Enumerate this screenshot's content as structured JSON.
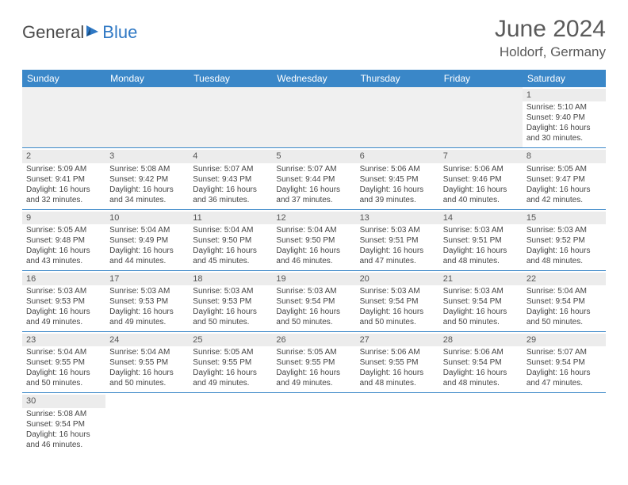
{
  "brand": {
    "part1": "General",
    "part2": "Blue"
  },
  "title": "June 2024",
  "location": "Holdorf, Germany",
  "colors": {
    "header_bg": "#3a87c8",
    "header_fg": "#ffffff",
    "rule": "#3a87c8",
    "blank_bg": "#f0f0f0",
    "text": "#444444",
    "title_color": "#5a5a5a"
  },
  "weekdays": [
    "Sunday",
    "Monday",
    "Tuesday",
    "Wednesday",
    "Thursday",
    "Friday",
    "Saturday"
  ],
  "weeks": [
    [
      null,
      null,
      null,
      null,
      null,
      null,
      {
        "n": "1",
        "sr": "Sunrise: 5:10 AM",
        "ss": "Sunset: 9:40 PM",
        "d1": "Daylight: 16 hours",
        "d2": "and 30 minutes."
      }
    ],
    [
      {
        "n": "2",
        "sr": "Sunrise: 5:09 AM",
        "ss": "Sunset: 9:41 PM",
        "d1": "Daylight: 16 hours",
        "d2": "and 32 minutes."
      },
      {
        "n": "3",
        "sr": "Sunrise: 5:08 AM",
        "ss": "Sunset: 9:42 PM",
        "d1": "Daylight: 16 hours",
        "d2": "and 34 minutes."
      },
      {
        "n": "4",
        "sr": "Sunrise: 5:07 AM",
        "ss": "Sunset: 9:43 PM",
        "d1": "Daylight: 16 hours",
        "d2": "and 36 minutes."
      },
      {
        "n": "5",
        "sr": "Sunrise: 5:07 AM",
        "ss": "Sunset: 9:44 PM",
        "d1": "Daylight: 16 hours",
        "d2": "and 37 minutes."
      },
      {
        "n": "6",
        "sr": "Sunrise: 5:06 AM",
        "ss": "Sunset: 9:45 PM",
        "d1": "Daylight: 16 hours",
        "d2": "and 39 minutes."
      },
      {
        "n": "7",
        "sr": "Sunrise: 5:06 AM",
        "ss": "Sunset: 9:46 PM",
        "d1": "Daylight: 16 hours",
        "d2": "and 40 minutes."
      },
      {
        "n": "8",
        "sr": "Sunrise: 5:05 AM",
        "ss": "Sunset: 9:47 PM",
        "d1": "Daylight: 16 hours",
        "d2": "and 42 minutes."
      }
    ],
    [
      {
        "n": "9",
        "sr": "Sunrise: 5:05 AM",
        "ss": "Sunset: 9:48 PM",
        "d1": "Daylight: 16 hours",
        "d2": "and 43 minutes."
      },
      {
        "n": "10",
        "sr": "Sunrise: 5:04 AM",
        "ss": "Sunset: 9:49 PM",
        "d1": "Daylight: 16 hours",
        "d2": "and 44 minutes."
      },
      {
        "n": "11",
        "sr": "Sunrise: 5:04 AM",
        "ss": "Sunset: 9:50 PM",
        "d1": "Daylight: 16 hours",
        "d2": "and 45 minutes."
      },
      {
        "n": "12",
        "sr": "Sunrise: 5:04 AM",
        "ss": "Sunset: 9:50 PM",
        "d1": "Daylight: 16 hours",
        "d2": "and 46 minutes."
      },
      {
        "n": "13",
        "sr": "Sunrise: 5:03 AM",
        "ss": "Sunset: 9:51 PM",
        "d1": "Daylight: 16 hours",
        "d2": "and 47 minutes."
      },
      {
        "n": "14",
        "sr": "Sunrise: 5:03 AM",
        "ss": "Sunset: 9:51 PM",
        "d1": "Daylight: 16 hours",
        "d2": "and 48 minutes."
      },
      {
        "n": "15",
        "sr": "Sunrise: 5:03 AM",
        "ss": "Sunset: 9:52 PM",
        "d1": "Daylight: 16 hours",
        "d2": "and 48 minutes."
      }
    ],
    [
      {
        "n": "16",
        "sr": "Sunrise: 5:03 AM",
        "ss": "Sunset: 9:53 PM",
        "d1": "Daylight: 16 hours",
        "d2": "and 49 minutes."
      },
      {
        "n": "17",
        "sr": "Sunrise: 5:03 AM",
        "ss": "Sunset: 9:53 PM",
        "d1": "Daylight: 16 hours",
        "d2": "and 49 minutes."
      },
      {
        "n": "18",
        "sr": "Sunrise: 5:03 AM",
        "ss": "Sunset: 9:53 PM",
        "d1": "Daylight: 16 hours",
        "d2": "and 50 minutes."
      },
      {
        "n": "19",
        "sr": "Sunrise: 5:03 AM",
        "ss": "Sunset: 9:54 PM",
        "d1": "Daylight: 16 hours",
        "d2": "and 50 minutes."
      },
      {
        "n": "20",
        "sr": "Sunrise: 5:03 AM",
        "ss": "Sunset: 9:54 PM",
        "d1": "Daylight: 16 hours",
        "d2": "and 50 minutes."
      },
      {
        "n": "21",
        "sr": "Sunrise: 5:03 AM",
        "ss": "Sunset: 9:54 PM",
        "d1": "Daylight: 16 hours",
        "d2": "and 50 minutes."
      },
      {
        "n": "22",
        "sr": "Sunrise: 5:04 AM",
        "ss": "Sunset: 9:54 PM",
        "d1": "Daylight: 16 hours",
        "d2": "and 50 minutes."
      }
    ],
    [
      {
        "n": "23",
        "sr": "Sunrise: 5:04 AM",
        "ss": "Sunset: 9:55 PM",
        "d1": "Daylight: 16 hours",
        "d2": "and 50 minutes."
      },
      {
        "n": "24",
        "sr": "Sunrise: 5:04 AM",
        "ss": "Sunset: 9:55 PM",
        "d1": "Daylight: 16 hours",
        "d2": "and 50 minutes."
      },
      {
        "n": "25",
        "sr": "Sunrise: 5:05 AM",
        "ss": "Sunset: 9:55 PM",
        "d1": "Daylight: 16 hours",
        "d2": "and 49 minutes."
      },
      {
        "n": "26",
        "sr": "Sunrise: 5:05 AM",
        "ss": "Sunset: 9:55 PM",
        "d1": "Daylight: 16 hours",
        "d2": "and 49 minutes."
      },
      {
        "n": "27",
        "sr": "Sunrise: 5:06 AM",
        "ss": "Sunset: 9:55 PM",
        "d1": "Daylight: 16 hours",
        "d2": "and 48 minutes."
      },
      {
        "n": "28",
        "sr": "Sunrise: 5:06 AM",
        "ss": "Sunset: 9:54 PM",
        "d1": "Daylight: 16 hours",
        "d2": "and 48 minutes."
      },
      {
        "n": "29",
        "sr": "Sunrise: 5:07 AM",
        "ss": "Sunset: 9:54 PM",
        "d1": "Daylight: 16 hours",
        "d2": "and 47 minutes."
      }
    ],
    [
      {
        "n": "30",
        "sr": "Sunrise: 5:08 AM",
        "ss": "Sunset: 9:54 PM",
        "d1": "Daylight: 16 hours",
        "d2": "and 46 minutes."
      },
      null,
      null,
      null,
      null,
      null,
      null
    ]
  ]
}
